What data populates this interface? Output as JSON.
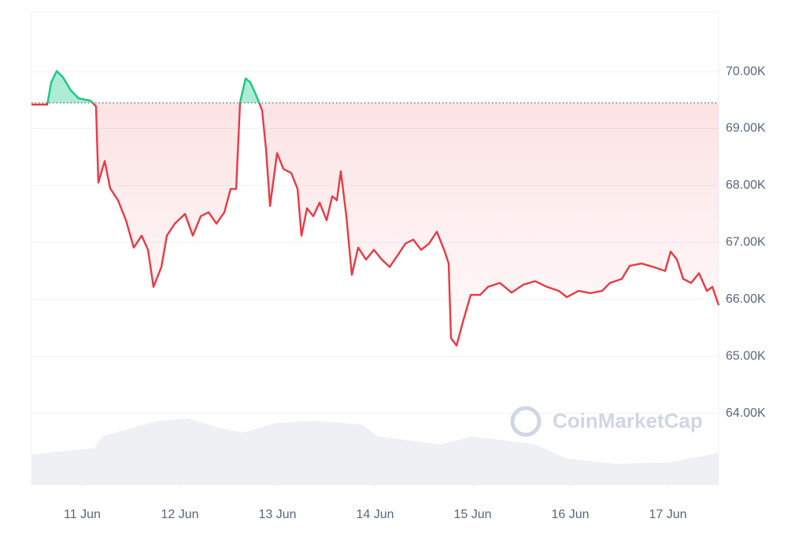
{
  "chart_data": {
    "type": "line",
    "watermark": "CoinMarketCap",
    "baseline": 69450,
    "xlim": [
      10.48,
      17.52
    ],
    "xticks": [
      {
        "value": 11,
        "label": "11 Jun"
      },
      {
        "value": 12,
        "label": "12 Jun"
      },
      {
        "value": 13,
        "label": "13 Jun"
      },
      {
        "value": 14,
        "label": "14 Jun"
      },
      {
        "value": 15,
        "label": "15 Jun"
      },
      {
        "value": 16,
        "label": "16 Jun"
      },
      {
        "value": 17,
        "label": "17 Jun"
      }
    ],
    "ylim": [
      62740,
      71050
    ],
    "yticks": [
      {
        "value": 64000,
        "label": "64.00K"
      },
      {
        "value": 65000,
        "label": "65.00K"
      },
      {
        "value": 66000,
        "label": "66.00K"
      },
      {
        "value": 67000,
        "label": "67.00K"
      },
      {
        "value": 68000,
        "label": "68.00K"
      },
      {
        "value": 69000,
        "label": "69.00K"
      },
      {
        "value": 70000,
        "label": "70.00K"
      }
    ],
    "grid": true,
    "up_color": "#16c784",
    "down_color": "#ea3943",
    "x": [
      10.48,
      10.641,
      10.682,
      10.738,
      10.803,
      10.883,
      10.964,
      11.085,
      11.141,
      11.165,
      11.23,
      11.286,
      11.367,
      11.448,
      11.528,
      11.609,
      11.674,
      11.73,
      11.811,
      11.867,
      11.948,
      12.053,
      12.133,
      12.214,
      12.295,
      12.375,
      12.456,
      12.52,
      12.577,
      12.617,
      12.674,
      12.722,
      12.778,
      12.843,
      12.883,
      12.924,
      12.996,
      13.061,
      13.141,
      13.206,
      13.246,
      13.303,
      13.367,
      13.432,
      13.504,
      13.561,
      13.609,
      13.649,
      13.706,
      13.762,
      13.827,
      13.907,
      13.988,
      14.069,
      14.149,
      14.23,
      14.311,
      14.391,
      14.472,
      14.553,
      14.633,
      14.714,
      14.754,
      14.778,
      14.835,
      14.899,
      14.98,
      15.077,
      15.157,
      15.278,
      15.399,
      15.52,
      15.641,
      15.762,
      15.883,
      15.964,
      16.085,
      16.206,
      16.327,
      16.407,
      16.528,
      16.609,
      16.73,
      16.851,
      16.972,
      17.028,
      17.093,
      17.157,
      17.238,
      17.319,
      17.399,
      17.456,
      17.52
    ],
    "values": [
      69420,
      69420,
      69810,
      70010,
      69900,
      69670,
      69530,
      69490,
      69390,
      68050,
      68430,
      67950,
      67740,
      67390,
      66910,
      67120,
      66870,
      66220,
      66570,
      67120,
      67330,
      67500,
      67120,
      67460,
      67530,
      67330,
      67530,
      67940,
      67940,
      69460,
      69880,
      69810,
      69600,
      69320,
      68630,
      67640,
      68570,
      68290,
      68220,
      67940,
      67120,
      67600,
      67460,
      67700,
      67390,
      67810,
      67740,
      68250,
      67460,
      66430,
      66910,
      66700,
      66870,
      66700,
      66570,
      66770,
      66980,
      67050,
      66870,
      66980,
      67190,
      66840,
      66630,
      65320,
      65190,
      65600,
      66080,
      66080,
      66220,
      66290,
      66120,
      66260,
      66320,
      66220,
      66150,
      66040,
      66150,
      66110,
      66150,
      66290,
      66360,
      66590,
      66630,
      66570,
      66500,
      66840,
      66700,
      66360,
      66290,
      66460,
      66150,
      66220,
      65900
    ],
    "volume": {
      "axis": "y2",
      "color": "#eef0f4",
      "x": [
        10.48,
        11.125,
        11.206,
        11.77,
        12.093,
        12.415,
        12.657,
        12.98,
        13.383,
        13.867,
        14.028,
        14.674,
        14.996,
        15.641,
        15.964,
        16.448,
        17.012,
        17.52
      ],
      "values": [
        6.5,
        7.8,
        10.3,
        13.6,
        14.1,
        12,
        11.1,
        13.1,
        13.6,
        12.8,
        10.3,
        8.6,
        10.3,
        8.6,
        5.6,
        4.5,
        4.8,
        6.8
      ]
    },
    "y2lim": [
      0,
      100
    ]
  }
}
